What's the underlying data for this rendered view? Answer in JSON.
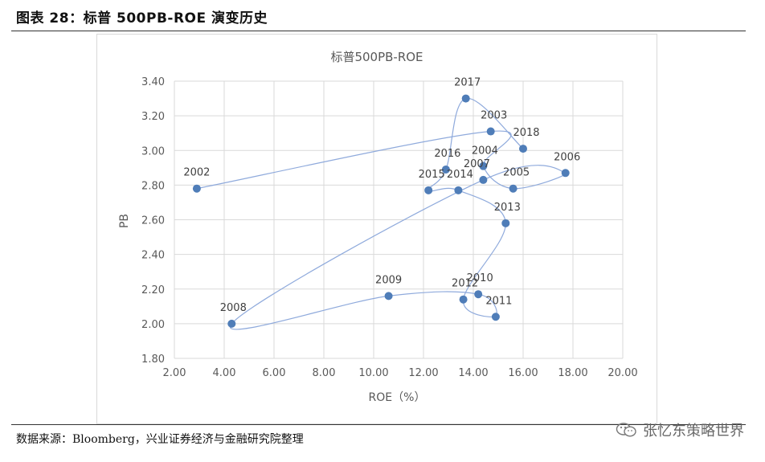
{
  "figure": {
    "title": "图表 28：标普 500PB-ROE 演变历史",
    "source": "数据来源：Bloomberg，兴业证券经济与金融研究院整理",
    "watermark": "张忆东策略世界",
    "watermark_icon": "wechat-icon"
  },
  "chart_data": {
    "type": "scatter",
    "title": "标普500PB-ROE",
    "xlabel": "ROE（%）",
    "ylabel": "PB",
    "xlim": [
      2.0,
      20.0
    ],
    "ylim": [
      1.8,
      3.4
    ],
    "x_ticks": [
      "2.00",
      "4.00",
      "6.00",
      "8.00",
      "10.00",
      "12.00",
      "14.00",
      "16.00",
      "18.00",
      "20.00"
    ],
    "y_ticks": [
      "1.80",
      "2.00",
      "2.20",
      "2.40",
      "2.60",
      "2.80",
      "3.00",
      "3.20",
      "3.40"
    ],
    "grid": "vertical and horizontal",
    "line_color": "#8FAADC",
    "marker_color": "#4F7DB8",
    "connected": true,
    "points": [
      {
        "year": "2002",
        "x": 2.9,
        "y": 2.78
      },
      {
        "year": "2003",
        "x": 14.7,
        "y": 3.11
      },
      {
        "year": "2004",
        "x": 14.4,
        "y": 2.91
      },
      {
        "year": "2005",
        "x": 15.6,
        "y": 2.78
      },
      {
        "year": "2006",
        "x": 17.7,
        "y": 2.87
      },
      {
        "year": "2007",
        "x": 14.4,
        "y": 2.83
      },
      {
        "year": "2008",
        "x": 4.3,
        "y": 2.0
      },
      {
        "year": "2009",
        "x": 10.6,
        "y": 2.16
      },
      {
        "year": "2010",
        "x": 14.2,
        "y": 2.17
      },
      {
        "year": "2011",
        "x": 14.9,
        "y": 2.04
      },
      {
        "year": "2012",
        "x": 13.6,
        "y": 2.14
      },
      {
        "year": "2013",
        "x": 15.3,
        "y": 2.58
      },
      {
        "year": "2014",
        "x": 13.4,
        "y": 2.77
      },
      {
        "year": "2015",
        "x": 12.2,
        "y": 2.77
      },
      {
        "year": "2016",
        "x": 12.9,
        "y": 2.89
      },
      {
        "year": "2017",
        "x": 13.7,
        "y": 3.3
      },
      {
        "year": "2018",
        "x": 16.0,
        "y": 3.01
      }
    ]
  }
}
